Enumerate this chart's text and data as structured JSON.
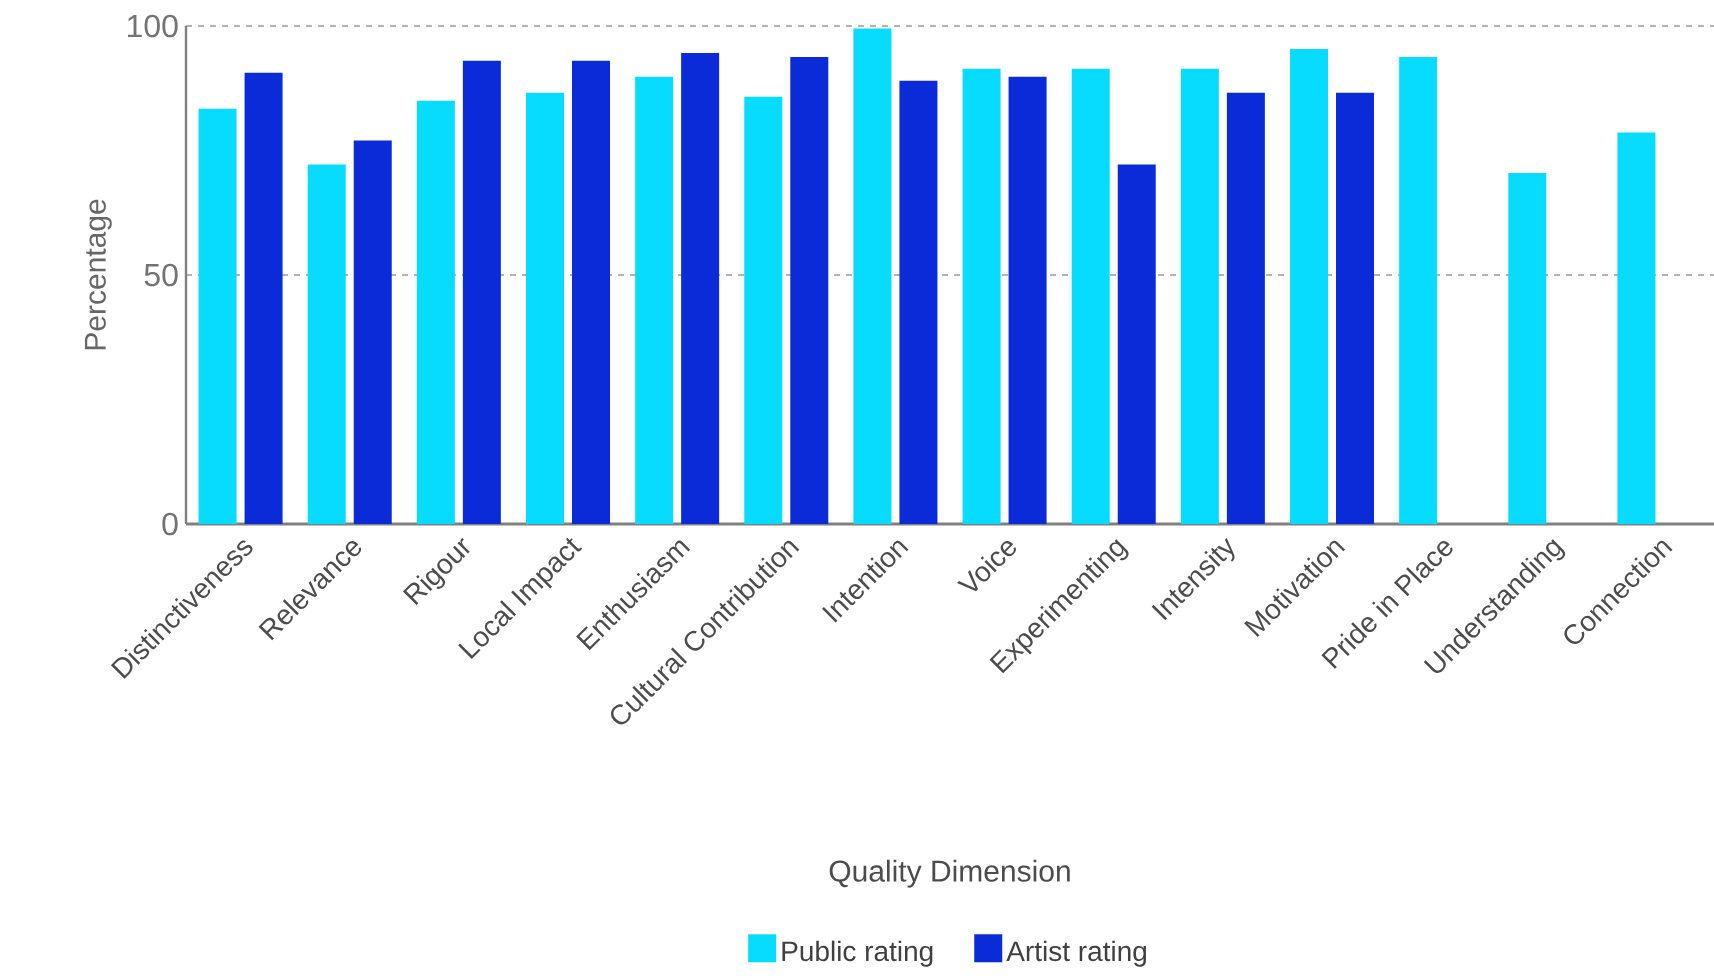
{
  "chart_data": {
    "type": "bar",
    "xlabel": "Quality Dimension",
    "ylabel": "Percentage",
    "categories": [
      "Distinctiveness",
      "Relevance",
      "Rigour",
      "Local Impact",
      "Enthusiasm",
      "Cultural Contribution",
      "Intention",
      "Voice",
      "Experimenting",
      "Intensity",
      "Motivation",
      "Pride in Place",
      "Understanding",
      "Connection"
    ],
    "series": [
      {
        "name": "Public rating",
        "color": "#08dcfe",
        "values": [
          83.4,
          72.2,
          85,
          86.6,
          89.8,
          85.8,
          99.5,
          91.4,
          91.4,
          91.4,
          95.4,
          93.8,
          70.5,
          78.6
        ]
      },
      {
        "name": "Artist rating",
        "color": "#0a2bd7",
        "values": [
          90.6,
          77,
          93,
          93,
          94.6,
          93.8,
          89,
          89.8,
          72.2,
          86.6,
          86.6,
          null,
          null,
          null
        ]
      }
    ],
    "ylim": [
      0,
      100
    ],
    "yticks": [
      0,
      50,
      100
    ],
    "grid": "y",
    "legend": "bottom"
  }
}
